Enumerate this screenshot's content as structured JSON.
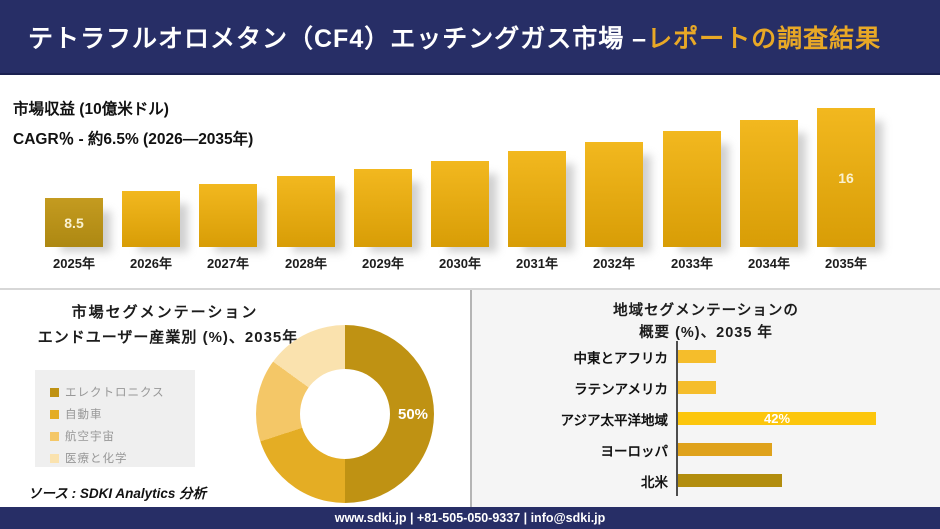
{
  "colors": {
    "navy": "#272e66",
    "accent_gold": "#e8a826",
    "bar_gradient_top": "#f2b81f",
    "bar_gradient_bottom": "#d89d06",
    "bar_first_gold": "#b8931d",
    "panel_gray": "#f5f5f5"
  },
  "header": {
    "title_main": "テトラフルオロメタン（CF4）エッチングガス市場 –",
    "title_accent": "レポートの調査結果"
  },
  "revenue_section": {
    "metric_label": "市場収益 (10億米ドル)",
    "cagr_label": "CAGR％ - 約6.5% (2026―2035年)"
  },
  "segmentation_section": {
    "title": "市場セグメンテーション",
    "subtitle": "エンドユーザー産業別 (%)、2035年",
    "center_label": "50%",
    "source_label": "ソース : SDKI Analytics 分析"
  },
  "regional_section": {
    "title_line1": "地域セグメンテーションの",
    "title_line2": "概要 (%)、2035 年"
  },
  "footer": {
    "text": "www.sdki.jp | +81-505-050-9337 | info@sdki.jp"
  },
  "chart_data": [
    {
      "type": "bar",
      "title": "市場収益 (10億米ドル)",
      "subtitle": "CAGR％ - 約6.5% (2026―2035年)",
      "ylabel": "10億米ドル",
      "categories": [
        "2025年",
        "2026年",
        "2027年",
        "2028年",
        "2029年",
        "2030年",
        "2031年",
        "2032年",
        "2033年",
        "2034年",
        "2035年"
      ],
      "values": [
        8.5,
        9.1,
        9.7,
        10.3,
        10.9,
        11.6,
        12.4,
        13.2,
        14.1,
        15.0,
        16
      ],
      "bar_labels": [
        "8.5",
        "",
        "",
        "",
        "",
        "",
        "",
        "",
        "",
        "",
        "16"
      ],
      "grid": false,
      "legend_position": "none"
    },
    {
      "type": "pie",
      "donut": true,
      "title": "市場セグメンテーション",
      "subtitle": "エンドユーザー産業別 (%)、2035年",
      "labels": [
        "エレクトロニクス",
        "自動車",
        "航空宇宙",
        "医療と化学"
      ],
      "values": [
        50,
        20,
        15,
        15
      ],
      "colors": [
        "#bf9213",
        "#e4ad24",
        "#f4c767",
        "#fae2ae"
      ],
      "visible_label": "50%",
      "legend_position": "left"
    },
    {
      "type": "bar",
      "orientation": "horizontal",
      "title": "地域セグメンテーションの概要 (%)、2035 年",
      "categories": [
        "中東とアフリカ",
        "ラテンアメリカ",
        "アジア太平洋地域",
        "ヨーロッパ",
        "北米"
      ],
      "values": [
        8,
        8,
        42,
        20,
        22
      ],
      "colors": [
        "#f5bd2b",
        "#f5bd2b",
        "#fcc60d",
        "#dfa21c",
        "#b28d0e"
      ],
      "bar_labels": [
        "",
        "",
        "42%",
        "",
        ""
      ],
      "xlim": [
        0,
        45
      ],
      "grid": false,
      "legend_position": "none"
    }
  ]
}
